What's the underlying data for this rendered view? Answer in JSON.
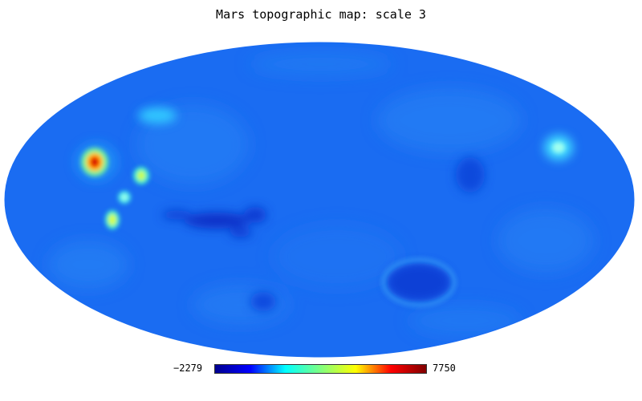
{
  "title": "Mars topographic map: scale 3",
  "colorbar": {
    "min_label": "−2279",
    "max_label": "7750",
    "min": -2279,
    "max": 7750,
    "colormap": "jet",
    "stops": [
      "#00008f",
      "#0000ff",
      "#00ffff",
      "#80ff80",
      "#ffff00",
      "#ff0000",
      "#800000"
    ]
  },
  "map": {
    "projection": "Mollweide",
    "background_color": "#1a6cf2"
  }
}
